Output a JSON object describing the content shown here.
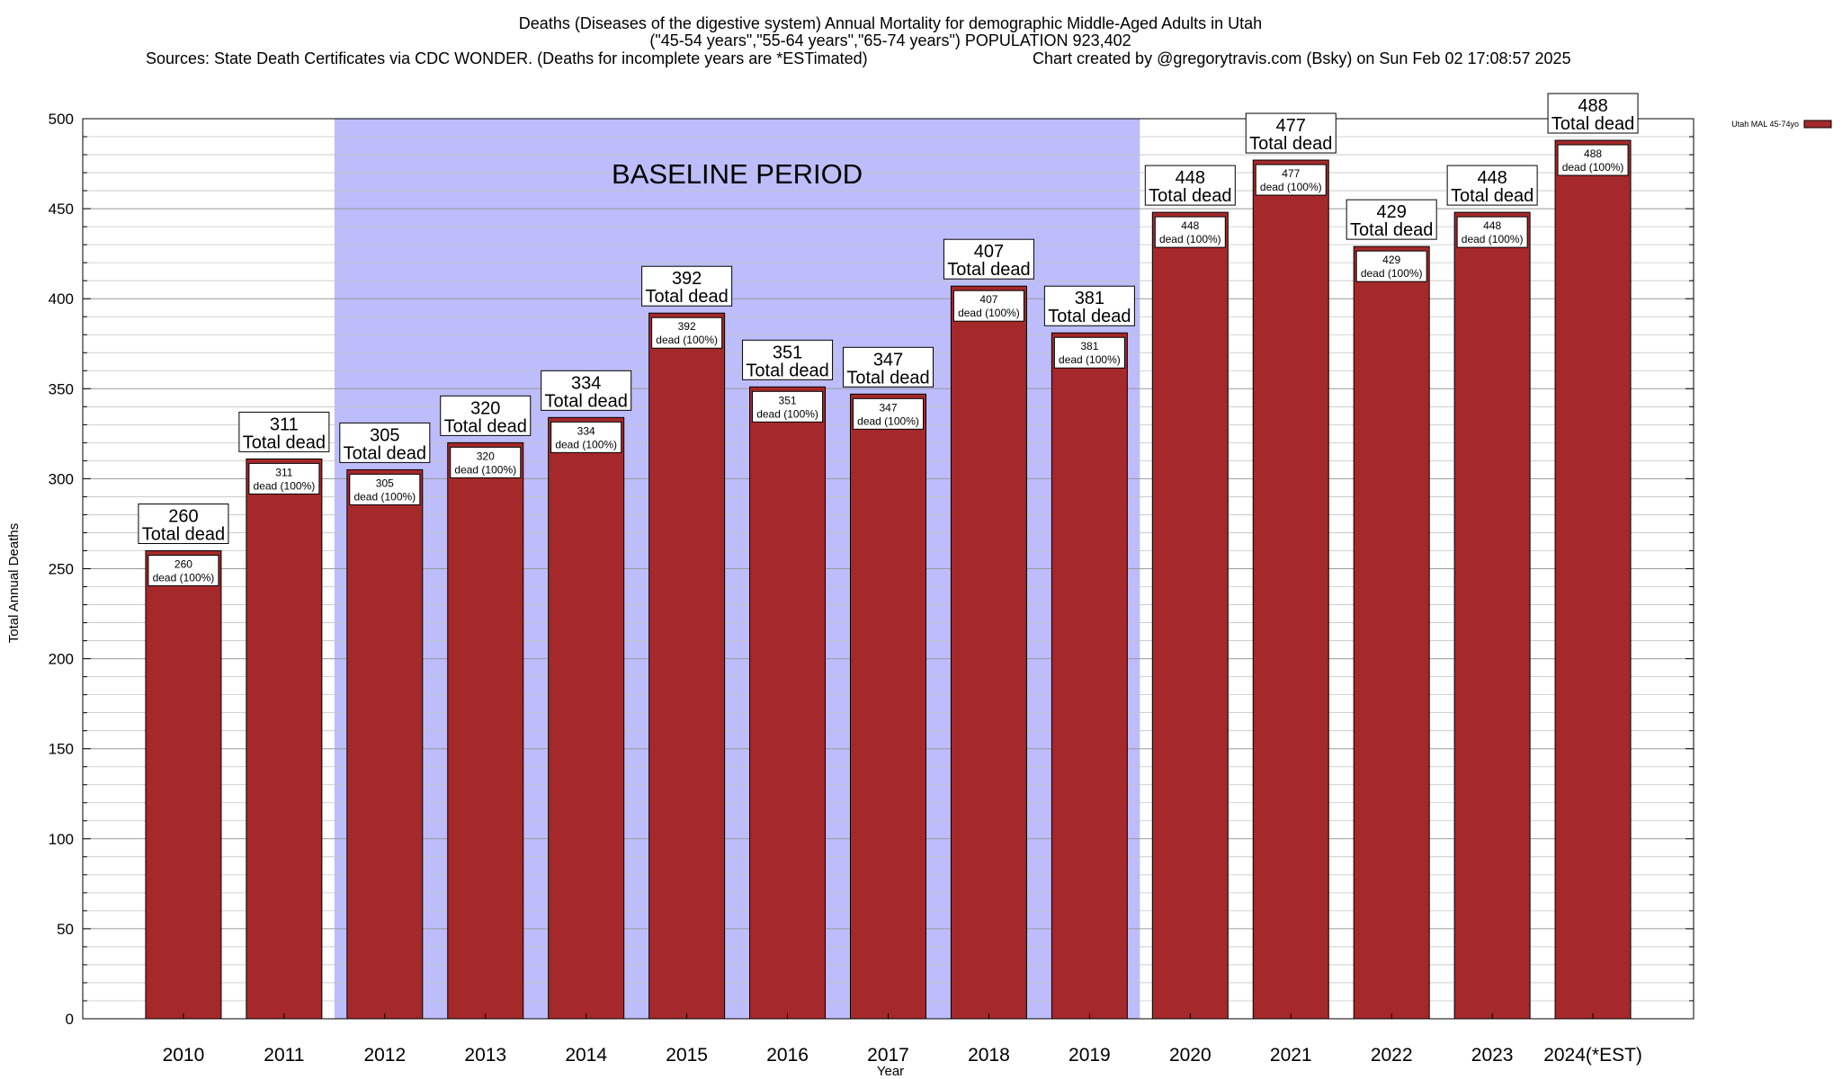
{
  "chart_data": {
    "type": "bar",
    "title_lines": [
      "Deaths (Diseases of the digestive system) Annual Mortality for demographic Middle-Aged Adults in Utah",
      "(\"45-54 years\",\"55-64 years\",\"65-74 years\") POPULATION 923,402"
    ],
    "source_line": "Sources: State Death Certificates via CDC WONDER. (Deaths for incomplete years are *ESTimated)",
    "credit_line": "Chart created by @gregorytravis.com (Bsky) on Sun Feb 02 17:08:57 2025",
    "xlabel": "Year",
    "ylabel": "Total Annual Deaths",
    "ylim": [
      0,
      500
    ],
    "y_ticks": [
      0,
      50,
      100,
      150,
      200,
      250,
      300,
      350,
      400,
      450,
      500
    ],
    "grid": true,
    "legend_position": "top-right",
    "categories": [
      "2010",
      "2011",
      "2012",
      "2013",
      "2014",
      "2015",
      "2016",
      "2017",
      "2018",
      "2019",
      "2020",
      "2021",
      "2022",
      "2023",
      "2024(*EST)"
    ],
    "series": [
      {
        "name": "Utah MAL 45-74yo",
        "color": "#a5292a",
        "values": [
          260,
          311,
          305,
          320,
          334,
          392,
          351,
          347,
          407,
          381,
          448,
          477,
          429,
          448,
          488
        ]
      }
    ],
    "top_label_suffix": "Total dead",
    "inner_label_suffix": "dead (100%)",
    "baseline_period": {
      "label": "BASELINE PERIOD",
      "start_category": "2012",
      "end_category": "2019",
      "color": "#bdbdfb"
    }
  }
}
